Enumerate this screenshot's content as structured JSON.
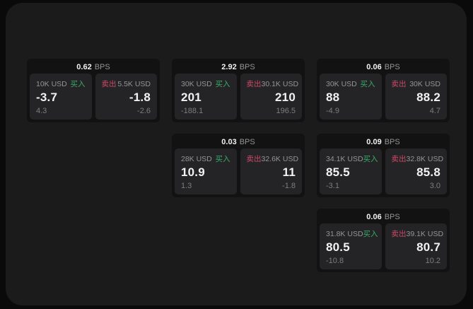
{
  "labels": {
    "bps_unit": "BPS",
    "buy": "买入",
    "sell": "卖出"
  },
  "colors": {
    "outer_bg": "#0a0a0a",
    "panel_bg": "#1b1b1c",
    "card_bg": "#121213",
    "subpanel_bg": "#242426",
    "text_primary": "#f2f2f2",
    "text_muted": "#949494",
    "text_dim": "#7d7d7d",
    "buy_green": "#3aab68",
    "sell_red": "#cc4a68"
  },
  "cards": [
    {
      "bps": "0.62",
      "col": 1,
      "row": 1,
      "buy": {
        "amount": "10K USD",
        "price": "-3.7",
        "delta": "4.3"
      },
      "sell": {
        "amount": "5.5K USD",
        "price": "-1.8",
        "delta": "-2.6"
      }
    },
    {
      "bps": "2.92",
      "col": 2,
      "row": 1,
      "buy": {
        "amount": "30K USD",
        "price": "201",
        "delta": "-188.1"
      },
      "sell": {
        "amount": "30.1K USD",
        "price": "210",
        "delta": "196.5"
      }
    },
    {
      "bps": "0.06",
      "col": 3,
      "row": 1,
      "buy": {
        "amount": "30K USD",
        "price": "88",
        "delta": "-4.9"
      },
      "sell": {
        "amount": "30K USD",
        "price": "88.2",
        "delta": "4.7"
      }
    },
    {
      "bps": "0.03",
      "col": 2,
      "row": 2,
      "buy": {
        "amount": "28K USD",
        "price": "10.9",
        "delta": "1.3"
      },
      "sell": {
        "amount": "32.6K USD",
        "price": "11",
        "delta": "-1.8"
      }
    },
    {
      "bps": "0.09",
      "col": 3,
      "row": 2,
      "buy": {
        "amount": "34.1K USD",
        "price": "85.5",
        "delta": "-3.1"
      },
      "sell": {
        "amount": "32.8K USD",
        "price": "85.8",
        "delta": "3.0"
      }
    },
    {
      "bps": "0.06",
      "col": 3,
      "row": 3,
      "buy": {
        "amount": "31.8K USD",
        "price": "80.5",
        "delta": "-10.8"
      },
      "sell": {
        "amount": "39.1K USD",
        "price": "80.7",
        "delta": "10.2"
      }
    }
  ]
}
